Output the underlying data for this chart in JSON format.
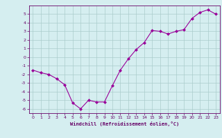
{
  "x": [
    0,
    1,
    2,
    3,
    4,
    5,
    6,
    7,
    8,
    9,
    10,
    11,
    12,
    13,
    14,
    15,
    16,
    17,
    18,
    19,
    20,
    21,
    22,
    23
  ],
  "y": [
    -1.5,
    -1.8,
    -2.0,
    -2.5,
    -3.2,
    -5.3,
    -6.0,
    -5.0,
    -5.2,
    -5.2,
    -3.3,
    -1.5,
    -0.2,
    0.9,
    1.7,
    3.1,
    3.0,
    2.7,
    3.0,
    3.2,
    4.5,
    5.2,
    5.5,
    5.0
  ],
  "xlabel": "Windchill (Refroidissement éolien,°C)",
  "ylim": [
    -6.5,
    6.0
  ],
  "xlim": [
    -0.5,
    23.5
  ],
  "xticks": [
    0,
    1,
    2,
    3,
    4,
    5,
    6,
    7,
    8,
    9,
    10,
    11,
    12,
    13,
    14,
    15,
    16,
    17,
    18,
    19,
    20,
    21,
    22,
    23
  ],
  "yticks": [
    -6,
    -5,
    -4,
    -3,
    -2,
    -1,
    0,
    1,
    2,
    3,
    4,
    5
  ],
  "line_color": "#990099",
  "marker": "D",
  "bg_color": "#d5eef0",
  "grid_color": "#aacccc",
  "axis_color": "#660066",
  "tick_color": "#660066",
  "label_color": "#660066"
}
